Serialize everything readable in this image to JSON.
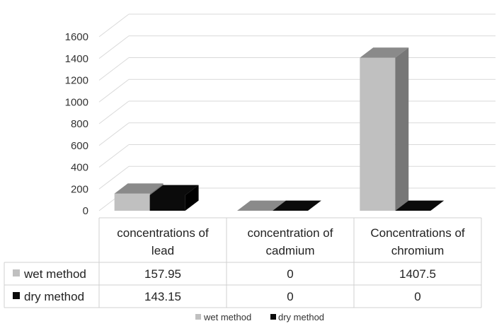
{
  "chart_data": {
    "type": "bar",
    "categories": [
      [
        "concentrations of",
        "lead"
      ],
      [
        "concentration of",
        "cadmium"
      ],
      [
        "Concentrations of",
        "chromium"
      ]
    ],
    "series": [
      {
        "name": "wet method",
        "values": [
          157.95,
          0,
          1407.5
        ],
        "display": [
          "157.95",
          "0",
          "1407.5"
        ],
        "color": "#c0c0c0"
      },
      {
        "name": "dry method",
        "values": [
          143.15,
          0,
          0
        ],
        "display": [
          "143.15",
          "0",
          "0"
        ],
        "color": "#0b0b0b"
      }
    ],
    "yticks": [
      "0",
      "200",
      "400",
      "600",
      "800",
      "1000",
      "1200",
      "1400",
      "1600"
    ],
    "ylim": [
      0,
      1600
    ],
    "grid": true,
    "legend_position": "bottom",
    "data_table": true
  }
}
